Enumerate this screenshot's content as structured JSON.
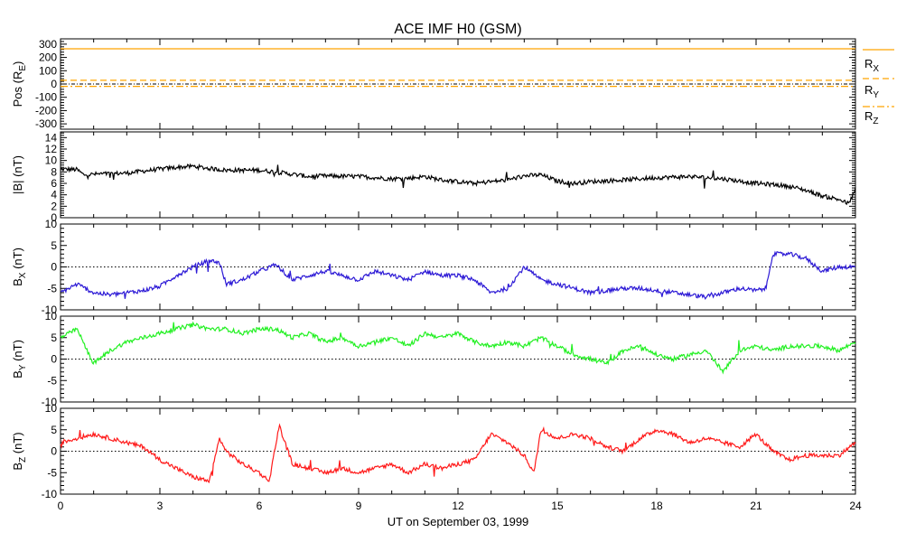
{
  "title": "ACE IMF H0 (GSM)",
  "xlabel": "UT on September 03, 1999",
  "chart_data": [
    {
      "type": "line",
      "panel": "position",
      "ylabel": "Pos (RE)",
      "ylim": [
        -340,
        340
      ],
      "yticks": [
        -300,
        -200,
        -100,
        0,
        100,
        200,
        300
      ],
      "xlim": [
        0,
        24
      ],
      "xticks": [
        0,
        3,
        6,
        9,
        12,
        15,
        18,
        21,
        24
      ],
      "zero_line": true,
      "legend_placement": "right",
      "series": [
        {
          "name": "RX",
          "color": "#ffa500",
          "style": "solid",
          "x": [
            0,
            24
          ],
          "y": [
            265,
            265
          ]
        },
        {
          "name": "RY",
          "color": "#ffa500",
          "style": "dashed",
          "x": [
            0,
            24
          ],
          "y": [
            28,
            28
          ]
        },
        {
          "name": "RZ",
          "color": "#ffa500",
          "style": "dashdot",
          "x": [
            0,
            24
          ],
          "y": [
            -18,
            -18
          ]
        }
      ]
    },
    {
      "type": "line",
      "panel": "btotal",
      "ylabel": "|B| (nT)",
      "ylim": [
        0,
        15
      ],
      "yticks": [
        0,
        2,
        4,
        6,
        8,
        10,
        12,
        14
      ],
      "xlim": [
        0,
        24
      ],
      "zero_line": false,
      "series": [
        {
          "name": "|B|",
          "color": "#000000",
          "x": [
            0,
            0.5,
            0.7,
            1,
            2,
            3,
            3.5,
            4,
            4.5,
            5,
            6,
            6.5,
            7,
            7.5,
            8,
            9,
            10,
            10.5,
            11,
            11.5,
            12,
            12.5,
            13,
            13.5,
            14,
            14.5,
            15,
            15.5,
            16,
            17,
            18,
            19,
            19.5,
            20,
            20.5,
            21,
            21.5,
            22,
            22.5,
            23,
            23.5,
            23.8,
            24
          ],
          "y": [
            8.5,
            8.4,
            7.5,
            7.6,
            7.8,
            8.5,
            8.8,
            9.0,
            8.6,
            8.3,
            8.3,
            8.0,
            7.6,
            7.2,
            7.3,
            7.2,
            6.8,
            6.9,
            7.2,
            6.6,
            6.3,
            6.0,
            6.3,
            6.6,
            7.3,
            7.5,
            6.4,
            6.0,
            6.3,
            6.6,
            7.0,
            7.2,
            7.0,
            6.8,
            6.4,
            6.0,
            5.8,
            5.5,
            4.8,
            3.8,
            3.2,
            2.4,
            5.0
          ]
        }
      ]
    },
    {
      "type": "line",
      "panel": "bx",
      "ylabel": "BX (nT)",
      "ylim": [
        -10,
        10
      ],
      "yticks": [
        -10,
        -5,
        0,
        5,
        10
      ],
      "xlim": [
        0,
        24
      ],
      "zero_line": true,
      "series": [
        {
          "name": "BX",
          "color": "#2d1ad6",
          "x": [
            0,
            0.5,
            1,
            1.5,
            2,
            2.5,
            3,
            3.5,
            4,
            4.5,
            4.8,
            5,
            5.5,
            6,
            6.5,
            7,
            7.5,
            8,
            8.5,
            9,
            9.5,
            10,
            10.5,
            11,
            11.5,
            12,
            12.5,
            13,
            13.5,
            14,
            14.5,
            15,
            15.5,
            16,
            16.5,
            17,
            17.5,
            18,
            18.5,
            19,
            19.5,
            20,
            20.5,
            21,
            21.3,
            21.5,
            22,
            22.5,
            23,
            23.5,
            24
          ],
          "y": [
            -6,
            -4,
            -6,
            -6.5,
            -6,
            -5.5,
            -4.5,
            -2,
            0,
            1.5,
            1,
            -4,
            -3,
            -1,
            0.5,
            -3,
            -2,
            -1,
            -2,
            -3,
            -1,
            -2,
            -3,
            -1,
            -2,
            -2,
            -3,
            -6,
            -5,
            0,
            -3,
            -4,
            -5,
            -6,
            -5.5,
            -5,
            -5,
            -5.5,
            -6,
            -6.5,
            -7,
            -6,
            -5,
            -5.5,
            -5,
            3,
            3,
            2,
            -1,
            0,
            0
          ]
        }
      ]
    },
    {
      "type": "line",
      "panel": "by",
      "ylabel": "BY (nT)",
      "ylim": [
        -10,
        10
      ],
      "yticks": [
        -10,
        -5,
        0,
        5,
        10
      ],
      "xlim": [
        0,
        24
      ],
      "zero_line": true,
      "series": [
        {
          "name": "BY",
          "color": "#22f022",
          "x": [
            0,
            0.5,
            0.8,
            1,
            1.5,
            2,
            2.5,
            3,
            3.5,
            4,
            4.5,
            5,
            5.5,
            6,
            6.5,
            7,
            7.5,
            8,
            8.5,
            9,
            9.5,
            10,
            10.5,
            11,
            11.5,
            12,
            12.5,
            13,
            13.5,
            14,
            14.5,
            15,
            15.5,
            16,
            16.5,
            17,
            17.5,
            18,
            18.5,
            19,
            19.5,
            20,
            20.5,
            21,
            21.5,
            22,
            22.5,
            23,
            23.5,
            24
          ],
          "y": [
            5,
            7,
            2,
            -1,
            2,
            4,
            5,
            6,
            7,
            8,
            7,
            7,
            6,
            7,
            7,
            5,
            6,
            4,
            5,
            3,
            4,
            5,
            3,
            6,
            5,
            6,
            4,
            3,
            4,
            3,
            5,
            3,
            1,
            0,
            -1,
            2,
            3,
            1,
            0,
            1,
            2,
            -3,
            2,
            3,
            2,
            3,
            3,
            3,
            2,
            4
          ]
        }
      ]
    },
    {
      "type": "line",
      "panel": "bz",
      "ylabel": "BZ (nT)",
      "ylim": [
        -10,
        10
      ],
      "yticks": [
        -10,
        -5,
        0,
        5,
        10
      ],
      "xlim": [
        0,
        24
      ],
      "zero_line": true,
      "series": [
        {
          "name": "BZ",
          "color": "#ff1a1a",
          "x": [
            0,
            0.5,
            1,
            1.5,
            2,
            2.5,
            3,
            3.5,
            4,
            4.5,
            4.8,
            5,
            5.5,
            6,
            6.3,
            6.6,
            7,
            7.5,
            8,
            8.5,
            9,
            9.5,
            10,
            10.5,
            11,
            11.5,
            12,
            12.5,
            13,
            13.5,
            14,
            14.3,
            14.5,
            15,
            15.5,
            16,
            16.5,
            17,
            17.5,
            18,
            18.5,
            19,
            19.5,
            20,
            20.5,
            21,
            21.5,
            22,
            22.5,
            23,
            23.5,
            24
          ],
          "y": [
            2,
            3,
            4,
            3,
            2,
            1,
            -2,
            -4,
            -6,
            -7,
            3,
            0,
            -3,
            -5,
            -7,
            6,
            -3,
            -4,
            -5,
            -4,
            -5,
            -4,
            -3,
            -5,
            -3,
            -4,
            -3,
            -2,
            4,
            2,
            -1,
            -5,
            5,
            3,
            4,
            3,
            1,
            0,
            3,
            5,
            4,
            2,
            3,
            2,
            1,
            4,
            0,
            -2,
            -1,
            -1,
            -1,
            2
          ]
        }
      ]
    }
  ]
}
